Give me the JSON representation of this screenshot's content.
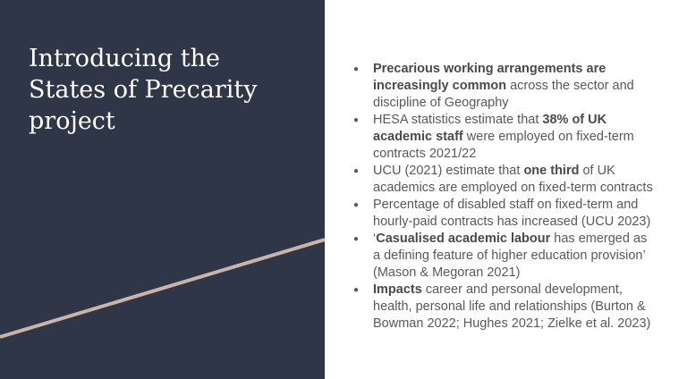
{
  "title": "Introducing the States of Precarity project",
  "bullets": [
    [
      {
        "text": "Precarious working arrangements are increasingly common",
        "bold": true
      },
      {
        "text": " across the sector and discipline of Geography",
        "bold": false
      }
    ],
    [
      {
        "text": "HESA statistics estimate that ",
        "bold": false
      },
      {
        "text": "38% of UK academic staff",
        "bold": true
      },
      {
        "text": " were employed on fixed-term contracts 2021/22",
        "bold": false
      }
    ],
    [
      {
        "text": "UCU (2021) estimate that ",
        "bold": false
      },
      {
        "text": "one third",
        "bold": true
      },
      {
        "text": " of UK academics are employed on fixed-term contracts",
        "bold": false
      }
    ],
    [
      {
        "text": "Percentage of disabled staff on fixed-term and hourly-paid contracts has increased (UCU 2023)",
        "bold": false
      }
    ],
    [
      {
        "text": "‘",
        "bold": false
      },
      {
        "text": "Casualised academic labour",
        "bold": true
      },
      {
        "text": " has emerged as a defining feature of higher education provision’ (Mason & Megoran 2021)",
        "bold": false
      }
    ],
    [
      {
        "text": "Impacts",
        "bold": true
      },
      {
        "text": " career and personal development, health, personal life and relationships (Burton & Bowman 2022; Hughes 2021; Zielke et al. 2023)",
        "bold": false
      }
    ]
  ]
}
